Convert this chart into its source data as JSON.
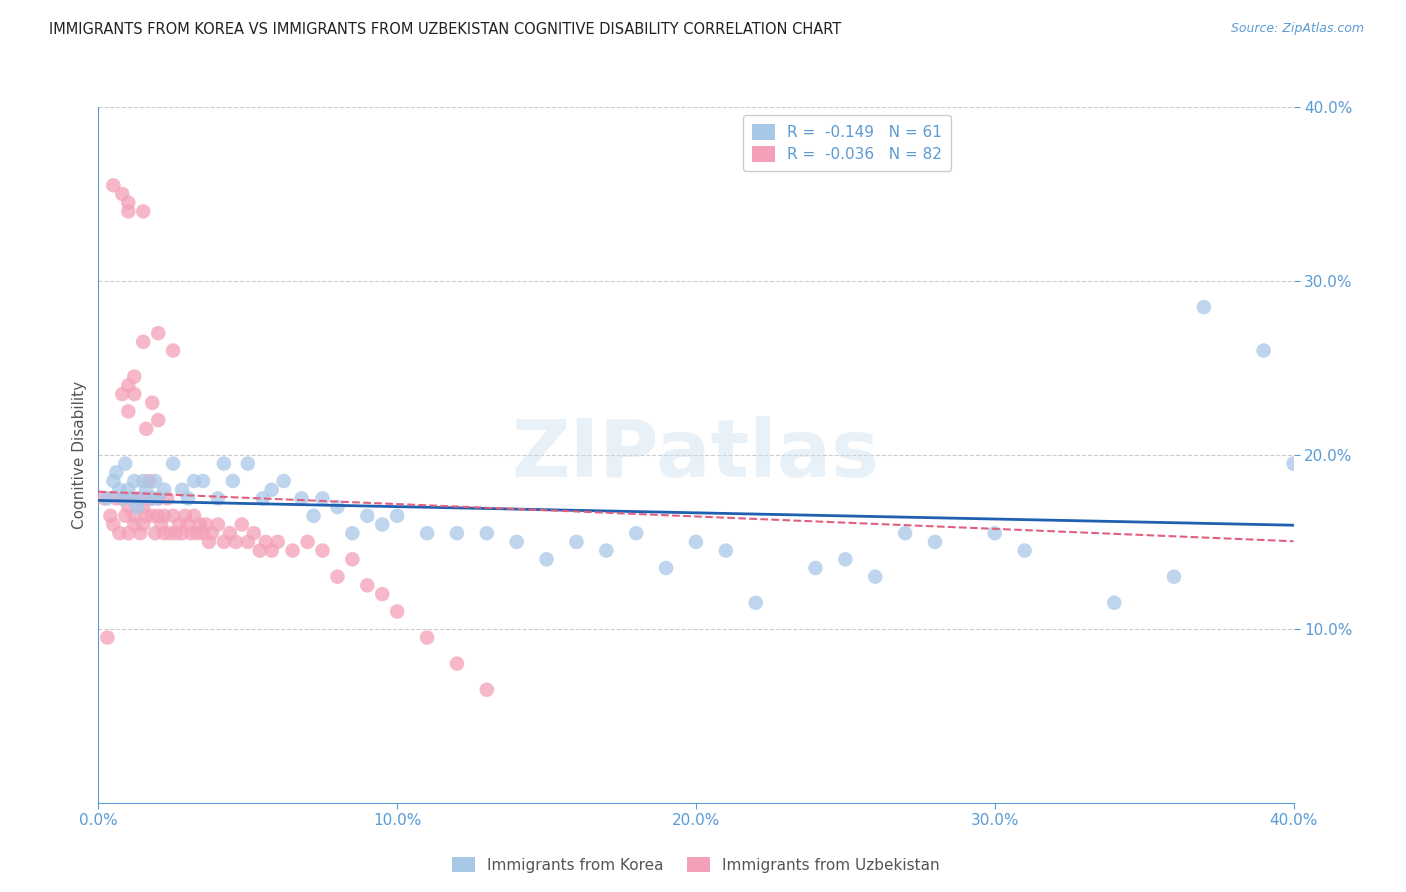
{
  "title": "IMMIGRANTS FROM KOREA VS IMMIGRANTS FROM UZBEKISTAN COGNITIVE DISABILITY CORRELATION CHART",
  "source": "Source: ZipAtlas.com",
  "ylabel": "Cognitive Disability",
  "xlim": [
    0.0,
    0.4
  ],
  "ylim": [
    0.0,
    0.4
  ],
  "xticks": [
    0.0,
    0.1,
    0.2,
    0.3,
    0.4
  ],
  "yticks": [
    0.1,
    0.2,
    0.3,
    0.4
  ],
  "xticklabels": [
    "0.0%",
    "10.0%",
    "20.0%",
    "30.0%",
    "40.0%"
  ],
  "yticklabels": [
    "10.0%",
    "20.0%",
    "30.0%",
    "40.0%"
  ],
  "korea_color": "#a8c8e8",
  "uzbekistan_color": "#f4a0b8",
  "trendline_korea_color": "#2060b0",
  "trendline_uzbekistan_color": "#e06080",
  "korea_R": -0.149,
  "korea_N": 61,
  "uzbekistan_R": -0.036,
  "uzbekistan_N": 82,
  "background_color": "#ffffff",
  "grid_color": "#cccccc",
  "axis_color": "#5b9bd5",
  "tick_color": "#5b9bd5",
  "watermark": "ZIPatlas",
  "korea_x": [
    0.003,
    0.005,
    0.006,
    0.007,
    0.008,
    0.009,
    0.01,
    0.011,
    0.012,
    0.013,
    0.014,
    0.015,
    0.016,
    0.018,
    0.019,
    0.02,
    0.022,
    0.025,
    0.028,
    0.03,
    0.032,
    0.035,
    0.04,
    0.042,
    0.045,
    0.05,
    0.055,
    0.058,
    0.062,
    0.068,
    0.072,
    0.075,
    0.08,
    0.085,
    0.09,
    0.095,
    0.1,
    0.11,
    0.12,
    0.13,
    0.14,
    0.15,
    0.16,
    0.17,
    0.18,
    0.19,
    0.2,
    0.21,
    0.22,
    0.24,
    0.25,
    0.26,
    0.27,
    0.28,
    0.3,
    0.31,
    0.34,
    0.36,
    0.37,
    0.39,
    0.4
  ],
  "korea_y": [
    0.175,
    0.185,
    0.19,
    0.18,
    0.175,
    0.195,
    0.18,
    0.175,
    0.185,
    0.17,
    0.175,
    0.185,
    0.18,
    0.175,
    0.185,
    0.175,
    0.18,
    0.195,
    0.18,
    0.175,
    0.185,
    0.185,
    0.175,
    0.195,
    0.185,
    0.195,
    0.175,
    0.18,
    0.185,
    0.175,
    0.165,
    0.175,
    0.17,
    0.155,
    0.165,
    0.16,
    0.165,
    0.155,
    0.155,
    0.155,
    0.15,
    0.14,
    0.15,
    0.145,
    0.155,
    0.135,
    0.15,
    0.145,
    0.115,
    0.135,
    0.14,
    0.13,
    0.155,
    0.15,
    0.155,
    0.145,
    0.115,
    0.13,
    0.285,
    0.26,
    0.195
  ],
  "uzbekistan_x": [
    0.002,
    0.003,
    0.004,
    0.005,
    0.006,
    0.007,
    0.008,
    0.009,
    0.01,
    0.01,
    0.011,
    0.012,
    0.012,
    0.013,
    0.014,
    0.015,
    0.015,
    0.016,
    0.016,
    0.017,
    0.018,
    0.018,
    0.019,
    0.02,
    0.02,
    0.021,
    0.022,
    0.022,
    0.023,
    0.024,
    0.025,
    0.026,
    0.027,
    0.028,
    0.029,
    0.03,
    0.031,
    0.032,
    0.033,
    0.034,
    0.035,
    0.036,
    0.037,
    0.038,
    0.04,
    0.042,
    0.044,
    0.046,
    0.048,
    0.05,
    0.052,
    0.054,
    0.056,
    0.058,
    0.06,
    0.065,
    0.07,
    0.075,
    0.08,
    0.085,
    0.09,
    0.095,
    0.1,
    0.11,
    0.12,
    0.13,
    0.01,
    0.015,
    0.02,
    0.025,
    0.008,
    0.012,
    0.016,
    0.02,
    0.005,
    0.01,
    0.015,
    0.008,
    0.01,
    0.01,
    0.012,
    0.018
  ],
  "uzbekistan_y": [
    0.175,
    0.095,
    0.165,
    0.16,
    0.175,
    0.155,
    0.175,
    0.165,
    0.17,
    0.155,
    0.175,
    0.16,
    0.165,
    0.175,
    0.155,
    0.17,
    0.16,
    0.165,
    0.175,
    0.185,
    0.165,
    0.175,
    0.155,
    0.165,
    0.175,
    0.16,
    0.155,
    0.165,
    0.175,
    0.155,
    0.165,
    0.155,
    0.16,
    0.155,
    0.165,
    0.16,
    0.155,
    0.165,
    0.155,
    0.16,
    0.155,
    0.16,
    0.15,
    0.155,
    0.16,
    0.15,
    0.155,
    0.15,
    0.16,
    0.15,
    0.155,
    0.145,
    0.15,
    0.145,
    0.15,
    0.145,
    0.15,
    0.145,
    0.13,
    0.14,
    0.125,
    0.12,
    0.11,
    0.095,
    0.08,
    0.065,
    0.225,
    0.265,
    0.27,
    0.26,
    0.235,
    0.245,
    0.215,
    0.22,
    0.355,
    0.345,
    0.34,
    0.35,
    0.34,
    0.24,
    0.235,
    0.23
  ]
}
